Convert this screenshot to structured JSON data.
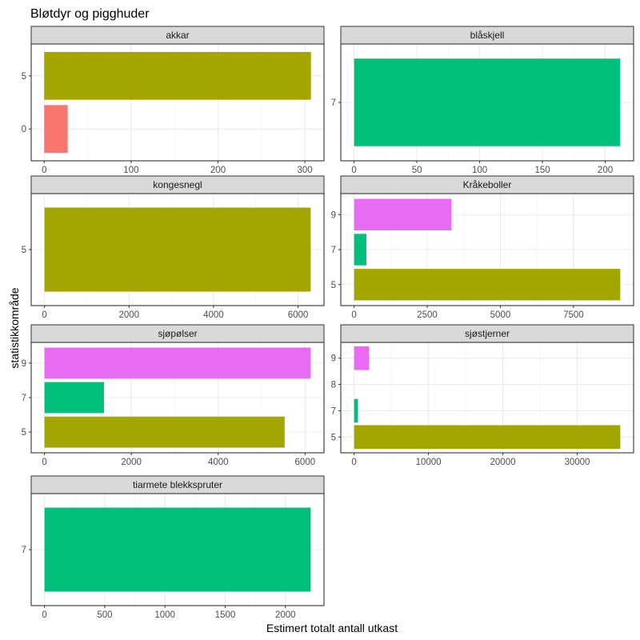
{
  "chart_data": {
    "type": "bar",
    "orientation": "horizontal",
    "title": "Bløtdyr og pigghuder",
    "xlabel": "Estimert totalt antall utkast",
    "ylabel": "statistikkområde",
    "colors": {
      "5": "#A3A500",
      "0": "#F8766D",
      "7": "#00BF7D",
      "9": "#E76BF3"
    },
    "panels": [
      {
        "strip": "akkar",
        "categories": [
          "0",
          "5"
        ],
        "bars": [
          {
            "category": "0",
            "value": 27
          },
          {
            "category": "5",
            "value": 307
          }
        ],
        "xlim": [
          -15,
          322
        ],
        "xticks": [
          0,
          100,
          200,
          300
        ]
      },
      {
        "strip": "blåskjell",
        "categories": [
          "7"
        ],
        "bars": [
          {
            "category": "7",
            "value": 212
          }
        ],
        "xlim": [
          -10.6,
          222.6
        ],
        "xticks": [
          0,
          50,
          100,
          150,
          200
        ]
      },
      {
        "strip": "kongesnegl",
        "categories": [
          "5"
        ],
        "bars": [
          {
            "category": "5",
            "value": 6300
          }
        ],
        "xlim": [
          -315,
          6615
        ],
        "xticks": [
          0,
          2000,
          4000,
          6000
        ]
      },
      {
        "strip": "Kråkeboller",
        "categories": [
          "5",
          "7",
          "9"
        ],
        "bars": [
          {
            "category": "5",
            "value": 9100
          },
          {
            "category": "7",
            "value": 420
          },
          {
            "category": "9",
            "value": 3330
          }
        ],
        "xlim": [
          -455,
          9555
        ],
        "xticks": [
          0,
          2500,
          5000,
          7500
        ]
      },
      {
        "strip": "sjøpølser",
        "categories": [
          "5",
          "7",
          "9"
        ],
        "bars": [
          {
            "category": "5",
            "value": 5530
          },
          {
            "category": "7",
            "value": 1370
          },
          {
            "category": "9",
            "value": 6130
          }
        ],
        "xlim": [
          -306,
          6436
        ],
        "xticks": [
          0,
          2000,
          4000,
          6000
        ]
      },
      {
        "strip": "sjøstjerner",
        "categories": [
          "5",
          "7",
          "8",
          "9"
        ],
        "bars": [
          {
            "category": "5",
            "value": 35800
          },
          {
            "category": "7",
            "value": 520
          },
          {
            "category": "9",
            "value": 2000
          }
        ],
        "xlim": [
          -1790,
          37590
        ],
        "xticks": [
          0,
          10000,
          20000,
          30000
        ]
      },
      {
        "strip": "tiarmete blekkspruter",
        "categories": [
          "7"
        ],
        "bars": [
          {
            "category": "7",
            "value": 2210
          }
        ],
        "xlim": [
          -110.5,
          2320.5
        ],
        "xticks": [
          0,
          500,
          1000,
          1500,
          2000
        ]
      }
    ]
  }
}
